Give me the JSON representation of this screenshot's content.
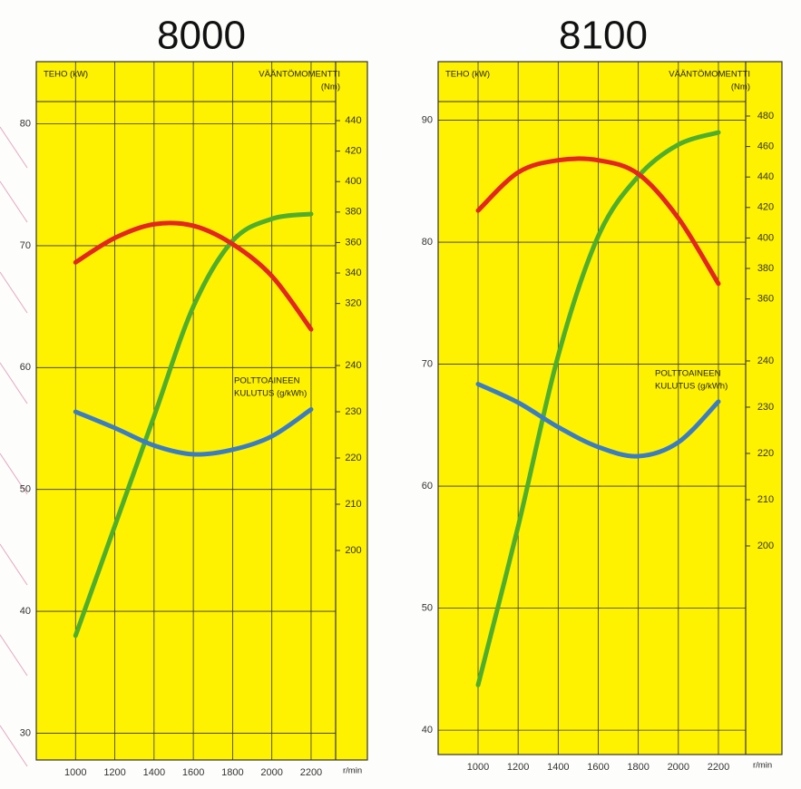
{
  "chart_data": [
    {
      "type": "line",
      "title": "8000",
      "y_label": "TEHO (kW)",
      "y2_label": [
        "VÄÄNTÖMOMENTTI",
        "(Nm)"
      ],
      "y3_label": [
        "POLTTOAINEEN",
        "KULUTUS (g/kWh)"
      ],
      "x_unit": "r/min",
      "x": [
        1000,
        1200,
        1400,
        1600,
        1800,
        2000,
        2200
      ],
      "xlim": [
        800,
        2325
      ],
      "xticks": [
        1000,
        1200,
        1400,
        1600,
        1800,
        2000,
        2200
      ],
      "ylim": [
        27.8,
        85.1
      ],
      "yticks": [
        30,
        40,
        50,
        60,
        70,
        80
      ],
      "y2lim": [
        20.4,
        478.7
      ],
      "y2ticks": [
        320,
        340,
        360,
        380,
        400,
        420,
        440
      ],
      "y3lim": [
        154.7,
        305.7
      ],
      "y3ticks": [
        200,
        210,
        220,
        230,
        240
      ],
      "grid": true,
      "series": [
        {
          "color": "#4fae2c",
          "axis": "y",
          "values": [
            38,
            47,
            56,
            65,
            70.4,
            72.2,
            72.6
          ]
        },
        {
          "color": "#e32621",
          "axis": "y2",
          "values": [
            347,
            363,
            372,
            371,
            359,
            338,
            303
          ]
        },
        {
          "color": "#3b7dc2",
          "axis": "y3",
          "values": [
            230,
            226.5,
            222.7,
            220.8,
            221.8,
            224.7,
            230.5
          ]
        }
      ]
    },
    {
      "type": "line",
      "title": "8100",
      "y_label": "TEHO (kW)",
      "y2_label": [
        "VÄÄNTÖMOMENTTI",
        "(Nm)"
      ],
      "y3_label": [
        "POLTTOAINEEN",
        "KULUTUS (g/kWh)"
      ],
      "x_unit": "r/min",
      "x": [
        1000,
        1200,
        1400,
        1600,
        1800,
        2000,
        2200
      ],
      "xlim": [
        800.7,
        2336
      ],
      "xticks": [
        1000,
        1200,
        1400,
        1600,
        1800,
        2000,
        2200
      ],
      "ylim": [
        38,
        94.8
      ],
      "yticks": [
        40,
        50,
        60,
        70,
        80,
        90
      ],
      "y2lim": [
        61,
        515.7
      ],
      "y2ticks": [
        360,
        380,
        400,
        420,
        440,
        460,
        480
      ],
      "y3lim": [
        154.9,
        304.7
      ],
      "y3ticks": [
        200,
        210,
        220,
        230,
        240
      ],
      "grid": true,
      "series": [
        {
          "color": "#4fae2c",
          "axis": "y",
          "values": [
            43.7,
            56.7,
            70.7,
            80.5,
            85.4,
            88,
            89
          ]
        },
        {
          "color": "#e32621",
          "axis": "y2",
          "values": [
            418,
            443,
            451,
            451,
            442,
            413,
            370
          ]
        },
        {
          "color": "#3b7dc2",
          "axis": "y3",
          "values": [
            235,
            231,
            225.7,
            221.4,
            219.4,
            222.4,
            231.2
          ]
        }
      ]
    }
  ]
}
